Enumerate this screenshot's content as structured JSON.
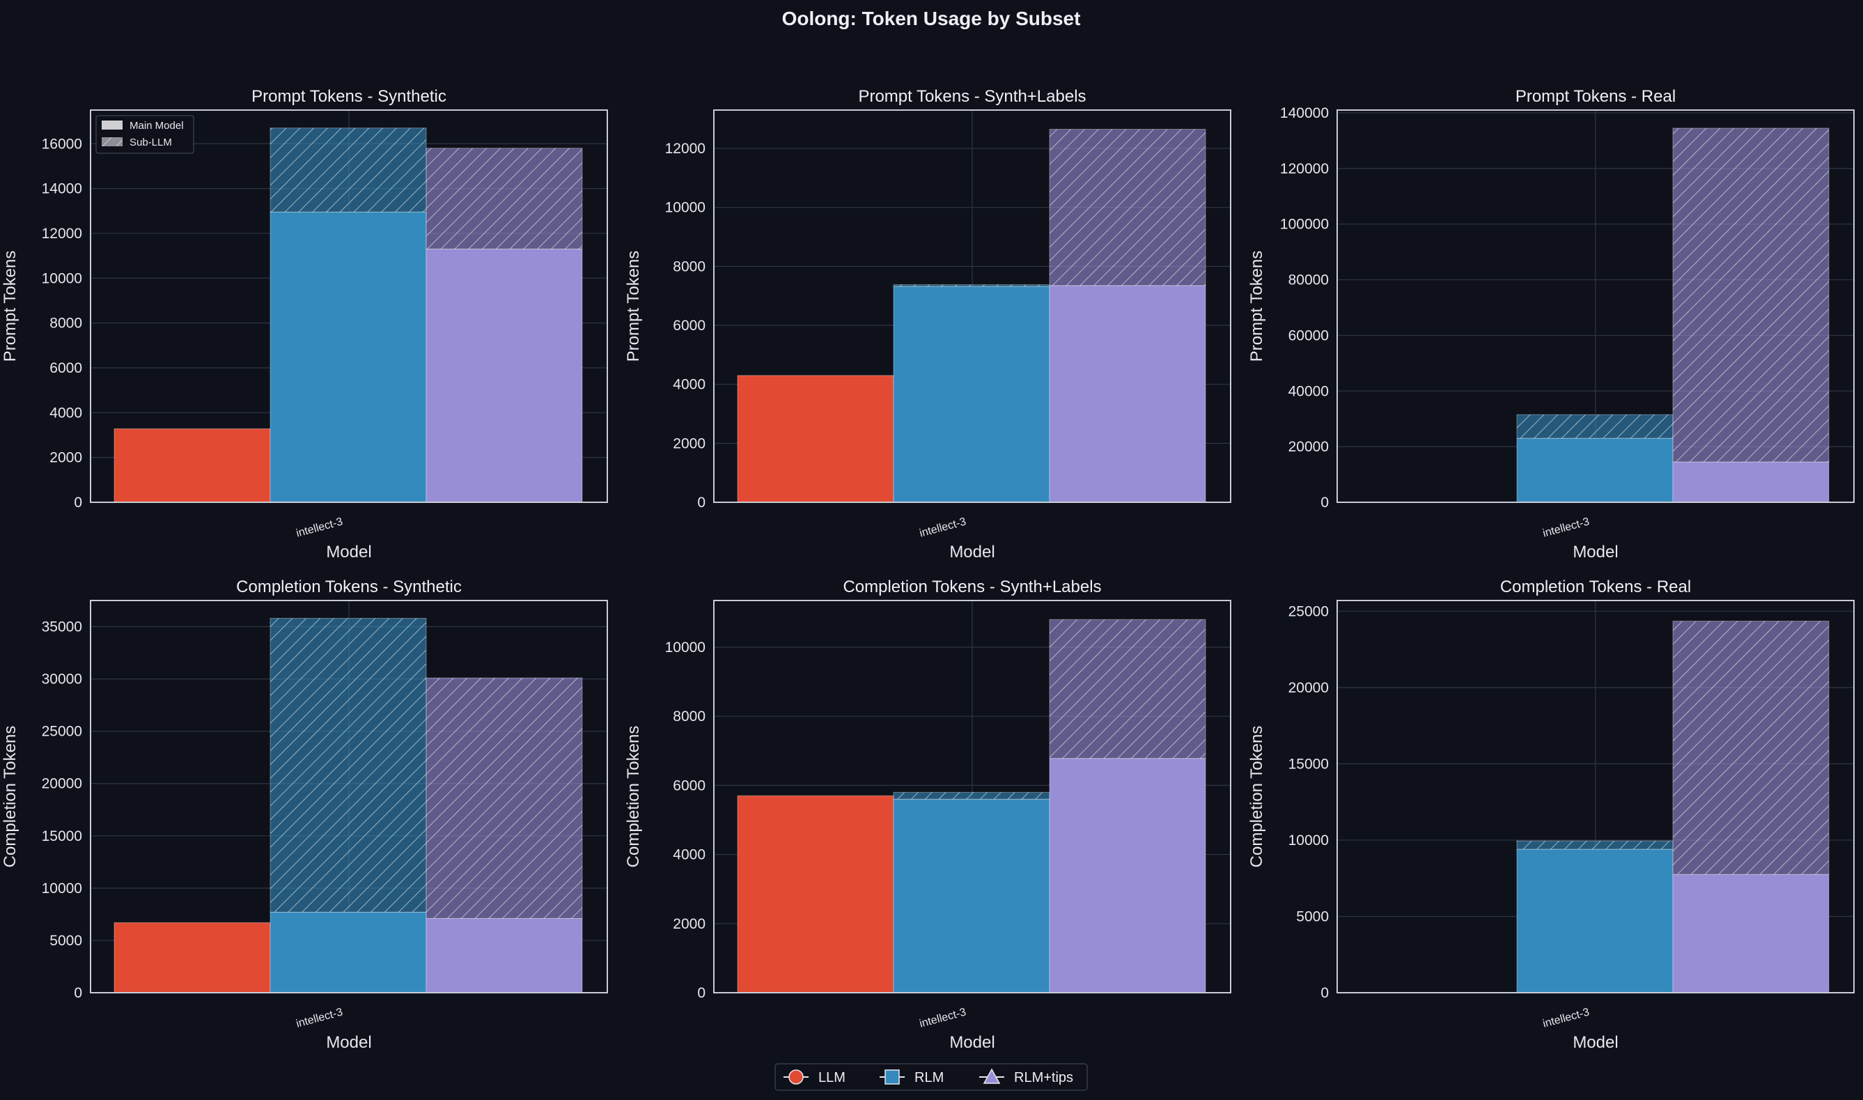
{
  "figure": {
    "title": "Oolong: Token Usage by Subset",
    "background": "#0e111a",
    "axes_face": "#0e111a",
    "grid_color": "#2f3545",
    "spine_color": "#c9ccd6"
  },
  "methods": [
    {
      "name": "LLM",
      "color": "#e24a33",
      "marker": "circle"
    },
    {
      "name": "RLM",
      "color": "#348abd",
      "marker": "square"
    },
    {
      "name": "RLM+tips",
      "color": "#988ed5",
      "marker": "triangle"
    }
  ],
  "stack_legend": {
    "main_label": "Main Model",
    "sub_label": "Sub-LLM",
    "main_color": "#cfcfd4",
    "sub_color": "#8e8e96"
  },
  "chart_data": [
    {
      "type": "bar",
      "stacked": true,
      "title": "Prompt Tokens - Synthetic",
      "xlabel": "Model",
      "ylabel": "Prompt Tokens",
      "categories": [
        "intellect-3"
      ],
      "ylim": [
        0,
        17500
      ],
      "yticks": [
        0,
        2000,
        4000,
        6000,
        8000,
        10000,
        12000,
        14000,
        16000
      ],
      "show_stack_legend": true,
      "series": [
        {
          "name": "LLM",
          "main": [
            3280
          ],
          "sub": [
            0
          ]
        },
        {
          "name": "RLM",
          "main": [
            12950
          ],
          "sub": [
            3750
          ]
        },
        {
          "name": "RLM+tips",
          "main": [
            11300
          ],
          "sub": [
            4500
          ]
        }
      ]
    },
    {
      "type": "bar",
      "stacked": true,
      "title": "Prompt Tokens - Synth+Labels",
      "xlabel": "Model",
      "ylabel": "Prompt Tokens",
      "categories": [
        "intellect-3"
      ],
      "ylim": [
        0,
        13300
      ],
      "yticks": [
        0,
        2000,
        4000,
        6000,
        8000,
        10000,
        12000
      ],
      "series": [
        {
          "name": "LLM",
          "main": [
            4300
          ],
          "sub": [
            0
          ]
        },
        {
          "name": "RLM",
          "main": [
            7320
          ],
          "sub": [
            60
          ]
        },
        {
          "name": "RLM+tips",
          "main": [
            7350
          ],
          "sub": [
            5300
          ]
        }
      ]
    },
    {
      "type": "bar",
      "stacked": true,
      "title": "Prompt Tokens - Real",
      "xlabel": "Model",
      "ylabel": "Prompt Tokens",
      "categories": [
        "intellect-3"
      ],
      "ylim": [
        0,
        141000
      ],
      "yticks": [
        0,
        20000,
        40000,
        60000,
        80000,
        100000,
        120000,
        140000
      ],
      "series": [
        {
          "name": "LLM",
          "main": [
            0
          ],
          "sub": [
            0
          ]
        },
        {
          "name": "RLM",
          "main": [
            23000
          ],
          "sub": [
            8500
          ]
        },
        {
          "name": "RLM+tips",
          "main": [
            14500
          ],
          "sub": [
            120000
          ]
        }
      ]
    },
    {
      "type": "bar",
      "stacked": true,
      "title": "Completion Tokens - Synthetic",
      "xlabel": "Model",
      "ylabel": "Completion Tokens",
      "categories": [
        "intellect-3"
      ],
      "ylim": [
        0,
        37500
      ],
      "yticks": [
        0,
        5000,
        10000,
        15000,
        20000,
        25000,
        30000,
        35000
      ],
      "series": [
        {
          "name": "LLM",
          "main": [
            6700
          ],
          "sub": [
            0
          ]
        },
        {
          "name": "RLM",
          "main": [
            7700
          ],
          "sub": [
            28100
          ]
        },
        {
          "name": "RLM+tips",
          "main": [
            7100
          ],
          "sub": [
            23000
          ]
        }
      ]
    },
    {
      "type": "bar",
      "stacked": true,
      "title": "Completion Tokens - Synth+Labels",
      "xlabel": "Model",
      "ylabel": "Completion Tokens",
      "categories": [
        "intellect-3"
      ],
      "ylim": [
        0,
        11350
      ],
      "yticks": [
        0,
        2000,
        4000,
        6000,
        8000,
        10000
      ],
      "series": [
        {
          "name": "LLM",
          "main": [
            5700
          ],
          "sub": [
            0
          ]
        },
        {
          "name": "RLM",
          "main": [
            5600
          ],
          "sub": [
            200
          ]
        },
        {
          "name": "RLM+tips",
          "main": [
            6780
          ],
          "sub": [
            4020
          ]
        }
      ]
    },
    {
      "type": "bar",
      "stacked": true,
      "title": "Completion Tokens - Real",
      "xlabel": "Model",
      "ylabel": "Completion Tokens",
      "categories": [
        "intellect-3"
      ],
      "ylim": [
        0,
        25700
      ],
      "yticks": [
        0,
        5000,
        10000,
        15000,
        20000,
        25000
      ],
      "series": [
        {
          "name": "LLM",
          "main": [
            0
          ],
          "sub": [
            0
          ]
        },
        {
          "name": "RLM",
          "main": [
            9400
          ],
          "sub": [
            550
          ]
        },
        {
          "name": "RLM+tips",
          "main": [
            7750
          ],
          "sub": [
            16600
          ]
        }
      ]
    }
  ]
}
